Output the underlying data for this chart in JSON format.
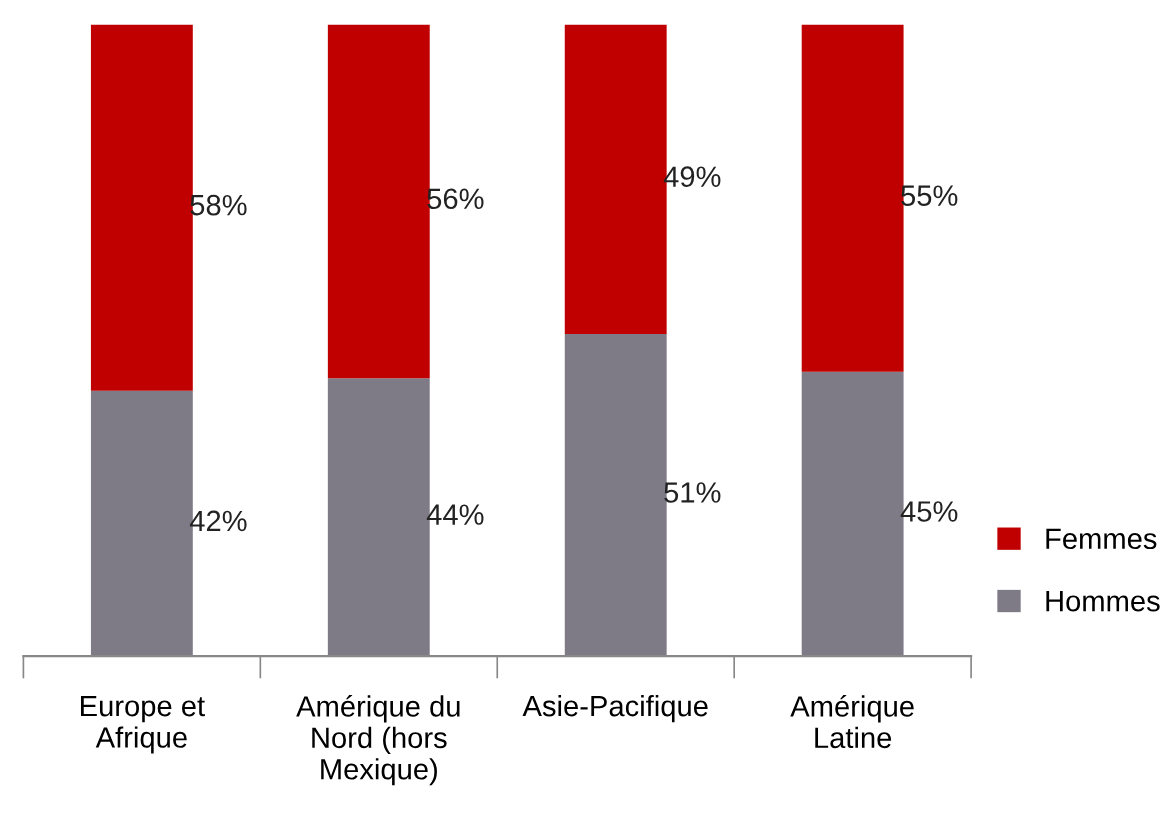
{
  "chart_data": {
    "type": "bar",
    "stacked": true,
    "legend": "right",
    "grid": false,
    "categories": [
      "Europe et Afrique",
      "Amérique du Nord (hors Mexique)",
      "Asie-Pacifique",
      "Amérique Latine"
    ],
    "series": [
      {
        "name": "Hommes",
        "color": "#7f7b86",
        "values": [
          42,
          44,
          51,
          45
        ],
        "value_labels": [
          "42%",
          "44%",
          "51%",
          "45%"
        ]
      },
      {
        "name": "Femmes",
        "color": "#c00000",
        "values": [
          58,
          56,
          49,
          55
        ],
        "value_labels": [
          "58%",
          "56%",
          "49%",
          "55%"
        ]
      }
    ]
  }
}
